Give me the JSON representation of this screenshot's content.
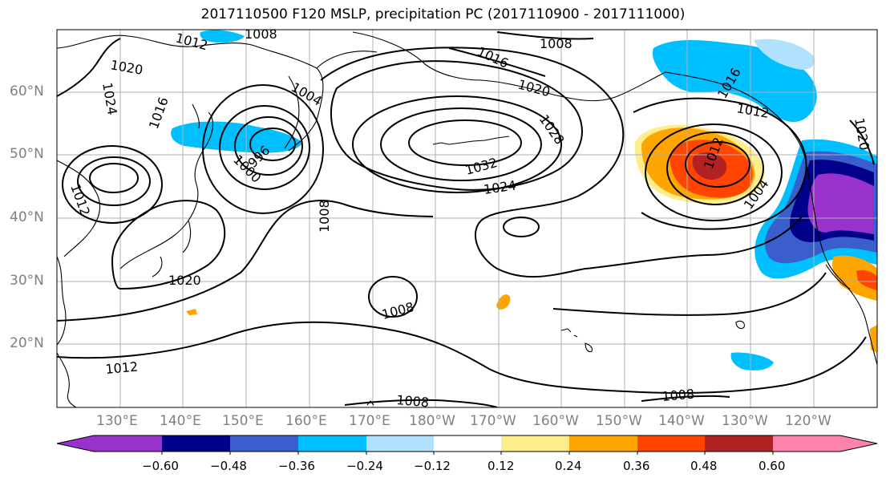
{
  "title": "2017110500 F120 MSLP, precipitation PC (2017110900 - 2017111000)",
  "latitudes": [
    "60°N",
    "50°N",
    "40°N",
    "30°N",
    "20°N"
  ],
  "longitudes": [
    "130°E",
    "140°E",
    "150°E",
    "160°E",
    "170°E",
    "180°W",
    "170°W",
    "160°W",
    "150°W",
    "140°W",
    "130°W",
    "120°W"
  ],
  "isobar_labels": [
    "1008",
    "1012",
    "1016",
    "1020",
    "1024",
    "1032",
    "1028",
    "1004",
    "1000",
    "996",
    "1020",
    "1024",
    "1012",
    "1008",
    "1008",
    "1008",
    "1008",
    "1008",
    "1004",
    "1012",
    "1016",
    "1020",
    "1020",
    "1012",
    "1016",
    "1012"
  ],
  "colorbar": {
    "ticks": [
      "−0.60",
      "−0.48",
      "−0.36",
      "−0.24",
      "−0.12",
      "0.12",
      "0.24",
      "0.36",
      "0.48",
      "0.60"
    ],
    "colors": [
      "#9932cc",
      "#00008b",
      "#3a5fcd",
      "#00bfff",
      "#b0e2ff",
      "#ffffff",
      "#ffec8b",
      "#ffa500",
      "#ff4500",
      "#b22222",
      "#ff82ab"
    ]
  }
}
